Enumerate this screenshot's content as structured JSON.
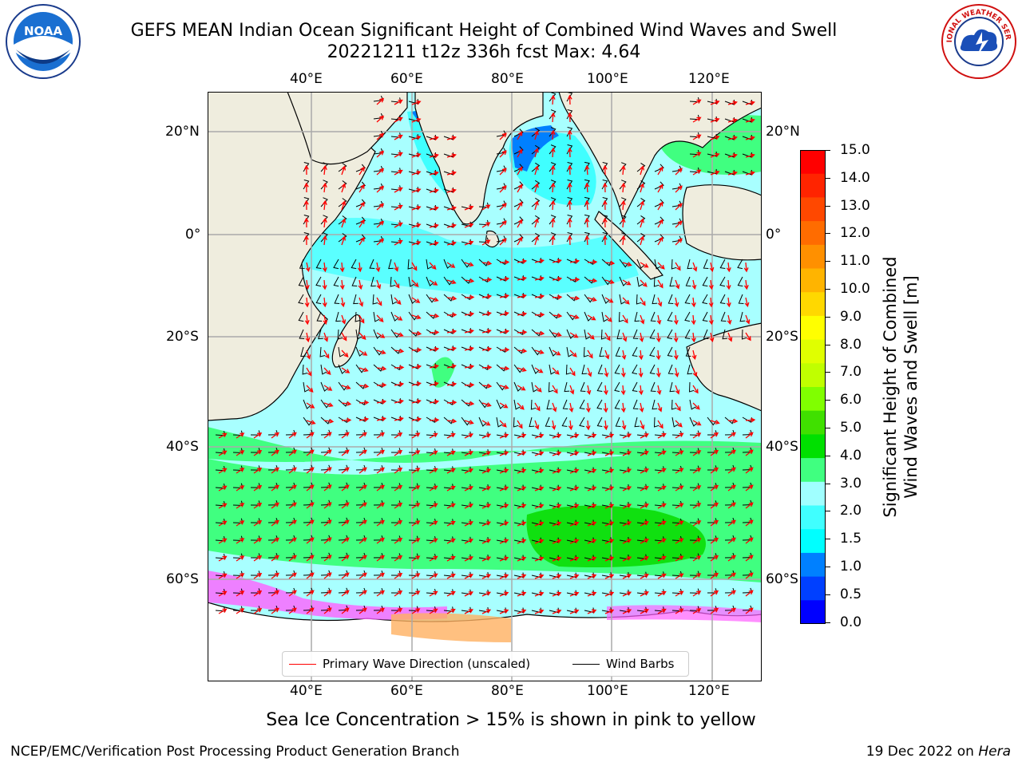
{
  "header": {
    "title_line1": "GEFS MEAN Indian Ocean Significant Height of Combined Wind Waves and Swell",
    "title_line2": "20221211 t12z 336h fcst   Max: 4.64"
  },
  "logos": {
    "left": {
      "icon": "noaa-logo",
      "text": "NOAA"
    },
    "right": {
      "icon": "national-weather-service-logo",
      "text": "NATIONAL WEATHER SERVICE"
    }
  },
  "map": {
    "projection": "lat-lon",
    "lon_range": [
      20,
      130
    ],
    "lat_range": [
      -75,
      27
    ],
    "lon_ticks": [
      "40°E",
      "60°E",
      "80°E",
      "100°E",
      "120°E"
    ],
    "lat_ticks": [
      "20°N",
      "0°",
      "20°S",
      "40°S",
      "60°S"
    ],
    "colors": {
      "land": "#efedde",
      "coast": "#000000",
      "grid": "#aaaaaa",
      "wave_arrow": "#ff0000",
      "wind_barb": "#000000",
      "sea_ice": "#ff40ff"
    }
  },
  "colorbar": {
    "label_line1": "Significant Height of Combined",
    "label_line2": "Wind Waves and Swell [m]",
    "ticks": [
      "15.0",
      "14.0",
      "13.0",
      "12.0",
      "11.0",
      "10.0",
      "9.0",
      "8.0",
      "7.0",
      "6.0",
      "5.0",
      "4.0",
      "3.0",
      "2.0",
      "1.5",
      "1.0",
      "0.5",
      "0.0"
    ],
    "colors_top_to_bottom": [
      "#ff0000",
      "#ff2400",
      "#ff4800",
      "#ff6c00",
      "#ff9000",
      "#ffb400",
      "#ffd800",
      "#ffff00",
      "#e0ff00",
      "#c0ff00",
      "#80ff00",
      "#40e000",
      "#00e000",
      "#40ff80",
      "#a0ffff",
      "#40ffff",
      "#00ffff",
      "#0080ff",
      "#0040ff",
      "#0000ff"
    ]
  },
  "legend": {
    "wave_label": "Primary Wave Direction (unscaled)",
    "wind_label": "Wind Barbs"
  },
  "footer": {
    "caption": "Sea Ice Concentration > 15% is shown in pink to yellow",
    "left": "NCEP/EMC/Verification Post Processing Product Generation Branch",
    "right_prefix": "19 Dec 2022 on ",
    "right_host": "Hera"
  }
}
